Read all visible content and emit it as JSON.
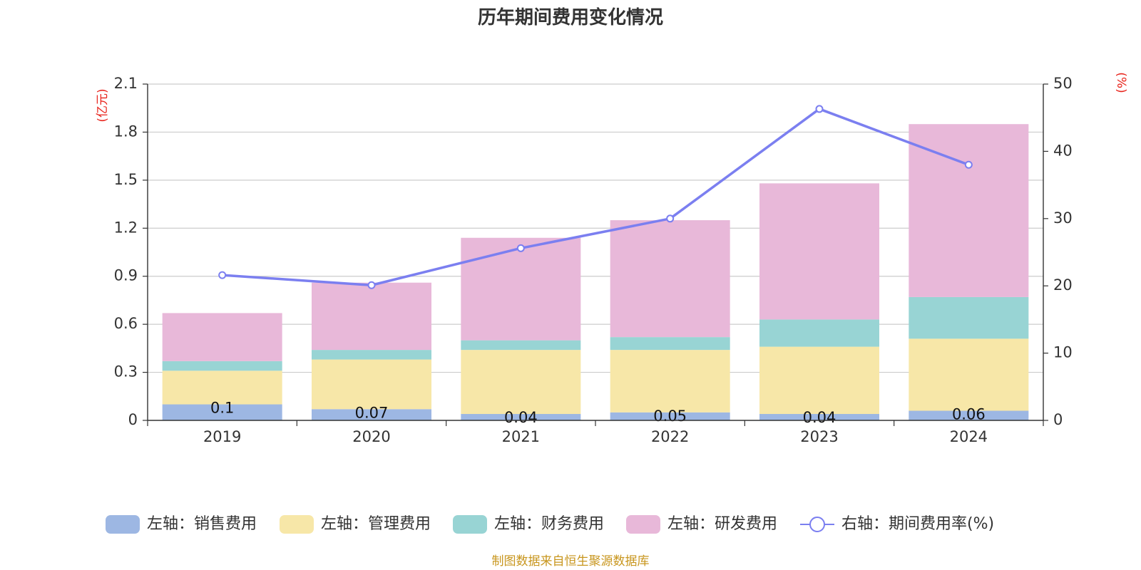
{
  "chart_data": {
    "type": "bar",
    "title": "历年期间费用变化情况",
    "categories": [
      "2019",
      "2020",
      "2021",
      "2022",
      "2023",
      "2024"
    ],
    "left_axis": {
      "unit": "(亿元)",
      "ylim": [
        0,
        2.1
      ],
      "ticks": [
        "0",
        "0.3",
        "0.6",
        "0.9",
        "1.2",
        "1.5",
        "1.8",
        "2.1"
      ]
    },
    "right_axis": {
      "unit": "(%)",
      "ylim": [
        0,
        50
      ],
      "ticks": [
        "0",
        "10",
        "20",
        "30",
        "40",
        "50"
      ]
    },
    "series": [
      {
        "name": "左轴：销售费用",
        "kind": "bar",
        "color": "#9db7e3",
        "values": [
          0.1,
          0.07,
          0.04,
          0.05,
          0.04,
          0.06
        ],
        "labels": [
          "0.1",
          "0.07",
          "0.04",
          "0.05",
          "0.04",
          "0.06"
        ]
      },
      {
        "name": "左轴：管理费用",
        "kind": "bar",
        "color": "#f7e7a8",
        "values": [
          0.21,
          0.31,
          0.4,
          0.39,
          0.42,
          0.45
        ]
      },
      {
        "name": "左轴：财务费用",
        "kind": "bar",
        "color": "#98d4d4",
        "values": [
          0.06,
          0.06,
          0.06,
          0.08,
          0.17,
          0.26
        ]
      },
      {
        "name": "左轴：研发费用",
        "kind": "bar",
        "color": "#e8b8d9",
        "values": [
          0.3,
          0.42,
          0.64,
          0.73,
          0.85,
          1.08
        ]
      },
      {
        "name": "右轴：期间费用率(%)",
        "kind": "line",
        "color": "#7b7ff0",
        "values": [
          21.6,
          20.1,
          25.6,
          30.0,
          46.3,
          38.0
        ]
      }
    ],
    "legend_position": "bottom",
    "grid": true
  },
  "footer": {
    "source": "制图数据来自恒生聚源数据库"
  }
}
